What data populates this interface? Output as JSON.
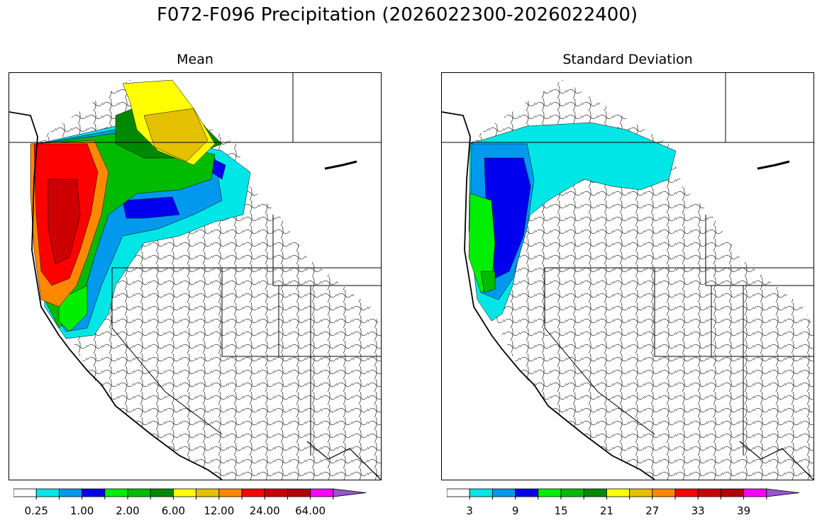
{
  "title": "F072-F096 Precipitation (2026022300-2026022400)",
  "panels": [
    {
      "name": "mean",
      "subtitle": "Mean",
      "colorbar": {
        "colors": [
          "#ffffff",
          "#00e5e5",
          "#0099ee",
          "#0000ee",
          "#00ee00",
          "#00bb00",
          "#008800",
          "#ffff00",
          "#e5c000",
          "#ff8800",
          "#ff0000",
          "#cc0000",
          "#b40000",
          "#ff00ff",
          "#9955cc"
        ],
        "tick_labels": [
          "0.25",
          "1.00",
          "2.00",
          "6.00",
          "12.00",
          "24.00",
          "64.00"
        ],
        "tick_label_bins": [
          1,
          3,
          5,
          7,
          9,
          11,
          13
        ],
        "extend": "max"
      }
    },
    {
      "name": "std",
      "subtitle": "Standard Deviation",
      "colorbar": {
        "colors": [
          "#ffffff",
          "#00e5e5",
          "#0099ee",
          "#0000ee",
          "#00ee00",
          "#00bb00",
          "#008800",
          "#ffff00",
          "#e5c000",
          "#ff8800",
          "#ff0000",
          "#cc0000",
          "#b40000",
          "#ff00ff",
          "#9955cc"
        ],
        "tick_labels": [
          "3",
          "9",
          "15",
          "21",
          "27",
          "33",
          "39"
        ],
        "tick_label_bins": [
          1,
          3,
          5,
          7,
          9,
          11,
          13
        ],
        "extend": "max"
      }
    }
  ]
}
